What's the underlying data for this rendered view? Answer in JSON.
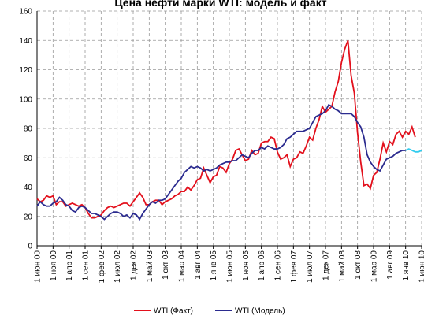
{
  "chart_data": {
    "type": "line",
    "title": "Цена нефти марки WTI: модель и факт",
    "categories": [
      "1 июн 00",
      null,
      null,
      null,
      null,
      "1 ноя 00",
      null,
      null,
      null,
      null,
      "1 апр 01",
      null,
      null,
      null,
      null,
      "1 сен 01",
      null,
      null,
      null,
      null,
      "1 фев 02",
      null,
      null,
      null,
      null,
      "1 июл 02",
      null,
      null,
      null,
      null,
      "1 дек 02",
      null,
      null,
      null,
      null,
      "1 май 03",
      null,
      null,
      null,
      null,
      "1 окт 03",
      null,
      null,
      null,
      null,
      "1 мар 04",
      null,
      null,
      null,
      null,
      "1 авг 04",
      null,
      null,
      null,
      null,
      "1 янв 05",
      null,
      null,
      null,
      null,
      "1 июн 05",
      null,
      null,
      null,
      null,
      "1 ноя 05",
      null,
      null,
      null,
      null,
      "1 апр 06",
      null,
      null,
      null,
      null,
      "1 сен 06",
      null,
      null,
      null,
      null,
      "1 фев 07",
      null,
      null,
      null,
      null,
      "1 июл 07",
      null,
      null,
      null,
      null,
      "1 дек 07",
      null,
      null,
      null,
      null,
      "1 май 08",
      null,
      null,
      null,
      null,
      "1 окт 08",
      null,
      null,
      null,
      null,
      "1 мар 09",
      null,
      null,
      null,
      null,
      "1 авг 09",
      null,
      null,
      null,
      null,
      "1 янв 10",
      null,
      null,
      null,
      null,
      "1 июн 10"
    ],
    "series": [
      {
        "name": "WTI (Факт)",
        "color": "#e3101c",
        "values": [
          32,
          30,
          31,
          34,
          33,
          34,
          28,
          30,
          30,
          27,
          28,
          29,
          28,
          27,
          28,
          26,
          22,
          19,
          19,
          20,
          21,
          24,
          26,
          27,
          26,
          27,
          28,
          29,
          29,
          27,
          30,
          33,
          36,
          33,
          28,
          28,
          30,
          31,
          31,
          28,
          30,
          31,
          32,
          34,
          35,
          37,
          37,
          40,
          38,
          41,
          45,
          46,
          53,
          48,
          43,
          47,
          48,
          54,
          53,
          50,
          56,
          59,
          65,
          66,
          62,
          58,
          59,
          65,
          62,
          63,
          70,
          71,
          71,
          74,
          73,
          64,
          59,
          60,
          62,
          54,
          59,
          60,
          64,
          63,
          68,
          74,
          72,
          80,
          86,
          95,
          91,
          93,
          95,
          105,
          112,
          125,
          134,
          140,
          116,
          104,
          77,
          57,
          41,
          42,
          39,
          48,
          50,
          59,
          70,
          64,
          71,
          69,
          76,
          78,
          74,
          78,
          76,
          81,
          74,
          null,
          null
        ]
      },
      {
        "name": "WTI (Модель)",
        "color": "#2b2b8f",
        "values": [
          27,
          30,
          28,
          27,
          27,
          29,
          30,
          33,
          31,
          28,
          27,
          24,
          23,
          26,
          27,
          26,
          24,
          22,
          22,
          21,
          20,
          18,
          20,
          22,
          23,
          23,
          22,
          20,
          21,
          19,
          22,
          21,
          18,
          22,
          25,
          28,
          30,
          29,
          31,
          31,
          32,
          35,
          38,
          41,
          44,
          46,
          50,
          52,
          54,
          53,
          54,
          53,
          51,
          52,
          51,
          52,
          53,
          55,
          56,
          57,
          57,
          58,
          58,
          60,
          62,
          61,
          60,
          63,
          65,
          65,
          67,
          66,
          68,
          67,
          66,
          66,
          67,
          69,
          73,
          74,
          76,
          78,
          78,
          78,
          79,
          80,
          84,
          88,
          89,
          90,
          92,
          96,
          95,
          93,
          92,
          90,
          90,
          90,
          90,
          88,
          84,
          81,
          74,
          62,
          57,
          54,
          52,
          51,
          55,
          59,
          60,
          61,
          63,
          64,
          65,
          65,
          null,
          null,
          null,
          null,
          null
        ]
      },
      {
        "color": "#33ccee",
        "values": [
          null,
          null,
          null,
          null,
          null,
          null,
          null,
          null,
          null,
          null,
          null,
          null,
          null,
          null,
          null,
          null,
          null,
          null,
          null,
          null,
          null,
          null,
          null,
          null,
          null,
          null,
          null,
          null,
          null,
          null,
          null,
          null,
          null,
          null,
          null,
          null,
          null,
          null,
          null,
          null,
          null,
          null,
          null,
          null,
          null,
          null,
          null,
          null,
          null,
          null,
          null,
          null,
          null,
          null,
          null,
          null,
          null,
          null,
          null,
          null,
          null,
          null,
          null,
          null,
          null,
          null,
          null,
          null,
          null,
          null,
          null,
          null,
          null,
          null,
          null,
          null,
          null,
          null,
          null,
          null,
          null,
          null,
          null,
          null,
          null,
          null,
          null,
          null,
          null,
          null,
          null,
          null,
          null,
          null,
          null,
          null,
          null,
          null,
          null,
          null,
          null,
          null,
          null,
          null,
          null,
          null,
          null,
          null,
          null,
          null,
          null,
          null,
          null,
          null,
          null,
          65,
          66,
          65,
          64,
          64,
          65
        ]
      }
    ],
    "ylim": [
      0,
      160
    ],
    "yticks": [
      0,
      20,
      40,
      60,
      80,
      100,
      120,
      140,
      160
    ],
    "grid": true,
    "legend": "bottom"
  }
}
